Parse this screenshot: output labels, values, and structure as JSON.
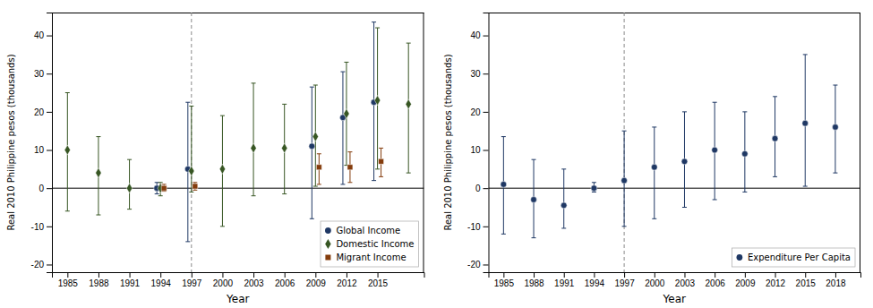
{
  "chart_data": [
    {
      "type": "scatter",
      "xlabel": "Year",
      "ylabel": "Real 2010 Philippine pesos (thousands)",
      "xlim": [
        1983.5,
        2019.5
      ],
      "ylim": [
        -22,
        46
      ],
      "xticks": [
        1985,
        1988,
        1991,
        1994,
        1997,
        2000,
        2003,
        2006,
        2009,
        2012,
        2015
      ],
      "yticks": [
        -20,
        -10,
        0,
        10,
        20,
        30,
        40
      ],
      "vline_x": 1997,
      "hline_y": 0,
      "grid": false,
      "legend": "lower right",
      "series": [
        {
          "name": "Global Income",
          "color": "#1f3864",
          "marker": "circle",
          "x": [
            1994,
            1997,
            2009,
            2012,
            2015
          ],
          "values": [
            0.0,
            5.0,
            11.0,
            18.5,
            22.5
          ],
          "ci_lo": [
            -1.5,
            -14.0,
            -8.0,
            1.0,
            2.0
          ],
          "ci_hi": [
            1.5,
            22.5,
            26.5,
            30.5,
            43.5
          ]
        },
        {
          "name": "Domestic Income",
          "color": "#375623",
          "marker": "diamond",
          "x": [
            1985,
            1988,
            1991,
            1994,
            1997,
            2000,
            2003,
            2006,
            2009,
            2012,
            2015,
            2018
          ],
          "values": [
            10.0,
            4.0,
            0.0,
            0.0,
            4.5,
            5.0,
            10.5,
            10.5,
            13.5,
            19.5,
            23.0,
            22.0
          ],
          "ci_lo": [
            -6.0,
            -7.0,
            -5.5,
            -2.0,
            -1.0,
            -10.0,
            -2.0,
            -1.5,
            0.5,
            6.0,
            5.0,
            4.0
          ],
          "ci_hi": [
            25.0,
            13.5,
            7.5,
            1.5,
            21.5,
            19.0,
            27.5,
            22.0,
            27.0,
            33.0,
            42.0,
            38.0
          ]
        },
        {
          "name": "Migrant Income",
          "color": "#843c0c",
          "marker": "square",
          "x": [
            1994,
            1997,
            2009,
            2012,
            2015
          ],
          "values": [
            0.0,
            0.5,
            5.5,
            5.5,
            7.0
          ],
          "ci_lo": [
            -0.8,
            -0.5,
            1.0,
            1.5,
            3.0
          ],
          "ci_hi": [
            1.0,
            1.5,
            9.0,
            9.5,
            10.5
          ]
        }
      ]
    },
    {
      "type": "scatter",
      "xlabel": "Year",
      "ylabel": "Real 2010 Philippine pesos (thousands)",
      "xlim": [
        1983.5,
        2020.5
      ],
      "ylim": [
        -22,
        46
      ],
      "xticks": [
        1985,
        1988,
        1991,
        1994,
        1997,
        2000,
        2003,
        2006,
        2009,
        2012,
        2015,
        2018
      ],
      "yticks": [
        -20,
        -10,
        0,
        10,
        20,
        30,
        40
      ],
      "vline_x": 1997,
      "hline_y": 0,
      "grid": false,
      "legend": "lower right",
      "series": [
        {
          "name": "Expenditure Per Capita",
          "color": "#1f3864",
          "marker": "circle",
          "x": [
            1985,
            1988,
            1991,
            1994,
            1997,
            2000,
            2003,
            2006,
            2009,
            2012,
            2015,
            2018
          ],
          "values": [
            1.0,
            -3.0,
            -4.5,
            0.0,
            2.0,
            5.5,
            7.0,
            10.0,
            9.0,
            13.0,
            17.0,
            16.0
          ],
          "ci_lo": [
            -12.0,
            -13.0,
            -10.5,
            -1.0,
            -10.0,
            -8.0,
            -5.0,
            -3.0,
            -1.0,
            3.0,
            0.5,
            4.0
          ],
          "ci_hi": [
            13.5,
            7.5,
            5.0,
            1.5,
            15.0,
            16.0,
            20.0,
            22.5,
            20.0,
            24.0,
            35.0,
            27.0
          ]
        }
      ]
    }
  ]
}
